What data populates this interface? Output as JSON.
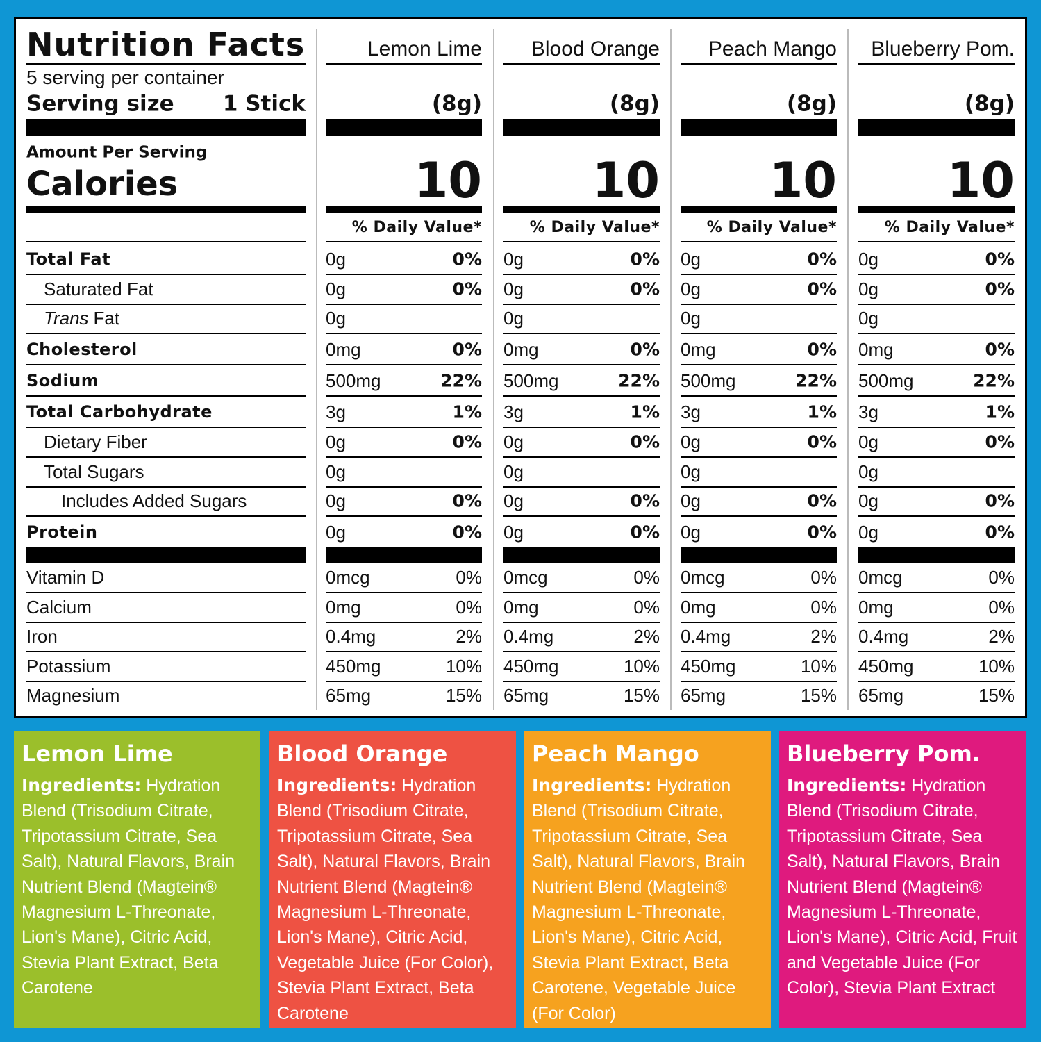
{
  "label": {
    "title": "Nutrition Facts",
    "servings": "5 serving per container",
    "serving_size_label": "Serving size",
    "serving_size": "1 Stick",
    "amount_per_serving": "Amount Per Serving",
    "calories_label": "Calories",
    "nutrients": [
      {
        "name": "Total Fat",
        "bold": true,
        "level": 0
      },
      {
        "name": "Saturated Fat",
        "bold": false,
        "level": 1
      },
      {
        "name": [
          "Trans",
          "Fat"
        ],
        "italic_first": true,
        "bold": false,
        "level": 1
      },
      {
        "name": "Cholesterol",
        "bold": true,
        "level": 0
      },
      {
        "name": "Sodium",
        "bold": true,
        "level": 0
      },
      {
        "name": "Total Carbohydrate",
        "bold": true,
        "level": 0
      },
      {
        "name": "Dietary Fiber",
        "bold": false,
        "level": 1
      },
      {
        "name": "Total Sugars",
        "bold": false,
        "level": 1
      },
      {
        "name": "Includes Added Sugars",
        "bold": false,
        "level": 2
      },
      {
        "name": "Protein",
        "bold": true,
        "level": 0
      }
    ],
    "minerals": [
      "Vitamin D",
      "Calcium",
      "Iron",
      "Potassium",
      "Magnesium"
    ],
    "flavors": [
      {
        "name": "Lemon Lime",
        "color": "#9bbf2b",
        "serving_weight": "(8g)",
        "calories": 10,
        "dv_header": "% Daily Value*",
        "nutrients": [
          {
            "amount": "0g",
            "dv": "0%"
          },
          {
            "amount": "0g",
            "dv": "0%"
          },
          {
            "amount": "0g"
          },
          {
            "amount": "0mg",
            "dv": "0%"
          },
          {
            "amount": "500mg",
            "dv": "22%"
          },
          {
            "amount": "3g",
            "dv": "1%"
          },
          {
            "amount": "0g",
            "dv": "0%"
          },
          {
            "amount": "0g"
          },
          {
            "amount": "0g",
            "dv": "0%"
          },
          {
            "amount": "0g",
            "dv": "0%"
          }
        ],
        "minerals": [
          {
            "amount": "0mcg",
            "dv": "0%"
          },
          {
            "amount": "0mg",
            "dv": "0%"
          },
          {
            "amount": "0.4mg",
            "dv": "2%"
          },
          {
            "amount": "450mg",
            "dv": "10%"
          },
          {
            "amount": "65mg",
            "dv": "15%"
          }
        ],
        "ingredients_label": "Ingredients:",
        "ingredients": "Hydration Blend (Trisodium Citrate, Tripotassium Citrate, Sea Salt), Natural Flavors, Brain Nutrient Blend (Magtein® Magnesium L-Threonate, Lion's Mane), Citric Acid, Stevia Plant Extract, Beta Carotene"
      },
      {
        "name": "Blood Orange",
        "color": "#ee5243",
        "serving_weight": "(8g)",
        "calories": 10,
        "dv_header": "% Daily Value*",
        "nutrients": [
          {
            "amount": "0g",
            "dv": "0%"
          },
          {
            "amount": "0g",
            "dv": "0%"
          },
          {
            "amount": "0g"
          },
          {
            "amount": "0mg",
            "dv": "0%"
          },
          {
            "amount": "500mg",
            "dv": "22%"
          },
          {
            "amount": "3g",
            "dv": "1%"
          },
          {
            "amount": "0g",
            "dv": "0%"
          },
          {
            "amount": "0g"
          },
          {
            "amount": "0g",
            "dv": "0%"
          },
          {
            "amount": "0g",
            "dv": "0%"
          }
        ],
        "minerals": [
          {
            "amount": "0mcg",
            "dv": "0%"
          },
          {
            "amount": "0mg",
            "dv": "0%"
          },
          {
            "amount": "0.4mg",
            "dv": "2%"
          },
          {
            "amount": "450mg",
            "dv": "10%"
          },
          {
            "amount": "65mg",
            "dv": "15%"
          }
        ],
        "ingredients_label": "Ingredients:",
        "ingredients": "Hydration Blend (Trisodium Citrate, Tripotassium Citrate, Sea Salt), Natural Flavors, Brain Nutrient Blend (Magtein® Magnesium L-Threonate, Lion's Mane), Citric Acid, Vegetable Juice (For Color), Stevia Plant Extract, Beta Carotene"
      },
      {
        "name": "Peach Mango",
        "color": "#f6a21f",
        "serving_weight": "(8g)",
        "calories": 10,
        "dv_header": "% Daily Value*",
        "nutrients": [
          {
            "amount": "0g",
            "dv": "0%"
          },
          {
            "amount": "0g",
            "dv": "0%"
          },
          {
            "amount": "0g"
          },
          {
            "amount": "0mg",
            "dv": "0%"
          },
          {
            "amount": "500mg",
            "dv": "22%"
          },
          {
            "amount": "3g",
            "dv": "1%"
          },
          {
            "amount": "0g",
            "dv": "0%"
          },
          {
            "amount": "0g"
          },
          {
            "amount": "0g",
            "dv": "0%"
          },
          {
            "amount": "0g",
            "dv": "0%"
          }
        ],
        "minerals": [
          {
            "amount": "0mcg",
            "dv": "0%"
          },
          {
            "amount": "0mg",
            "dv": "0%"
          },
          {
            "amount": "0.4mg",
            "dv": "2%"
          },
          {
            "amount": "450mg",
            "dv": "10%"
          },
          {
            "amount": "65mg",
            "dv": "15%"
          }
        ],
        "ingredients_label": "Ingredients:",
        "ingredients": "Hydration Blend (Trisodium Citrate, Tripotassium Citrate, Sea Salt), Natural Flavors, Brain Nutrient Blend (Magtein® Magnesium L-Threonate, Lion's Mane), Citric Acid, Stevia Plant Extract, Beta Carotene, Vegetable Juice (For Color)"
      },
      {
        "name": "Blueberry Pom.",
        "color": "#df1a7e",
        "serving_weight": "(8g)",
        "calories": 10,
        "dv_header": "% Daily Value*",
        "nutrients": [
          {
            "amount": "0g",
            "dv": "0%"
          },
          {
            "amount": "0g",
            "dv": "0%"
          },
          {
            "amount": "0g"
          },
          {
            "amount": "0mg",
            "dv": "0%"
          },
          {
            "amount": "500mg",
            "dv": "22%"
          },
          {
            "amount": "3g",
            "dv": "1%"
          },
          {
            "amount": "0g",
            "dv": "0%"
          },
          {
            "amount": "0g"
          },
          {
            "amount": "0g",
            "dv": "0%"
          },
          {
            "amount": "0g",
            "dv": "0%"
          }
        ],
        "minerals": [
          {
            "amount": "0mcg",
            "dv": "0%"
          },
          {
            "amount": "0mg",
            "dv": "0%"
          },
          {
            "amount": "0.4mg",
            "dv": "2%"
          },
          {
            "amount": "450mg",
            "dv": "10%"
          },
          {
            "amount": "65mg",
            "dv": "15%"
          }
        ],
        "ingredients_label": "Ingredients:",
        "ingredients": "Hydration Blend (Trisodium Citrate, Tripotassium Citrate, Sea Salt), Natural Flavors, Brain Nutrient Blend (Magtein® Magnesium L-Threonate, Lion's Mane), Citric Acid, Fruit and Vegetable Juice (For Color), Stevia Plant Extract"
      }
    ]
  }
}
